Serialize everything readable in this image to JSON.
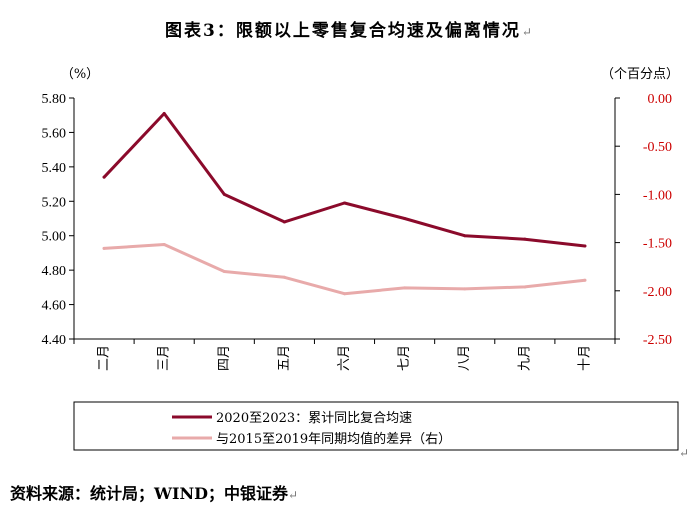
{
  "title": "图表3：限额以上零售复合均速及偏离情况",
  "source": "资料来源：统计局；WIND；中银证券",
  "paragraph_mark": "↵",
  "colors": {
    "series1": "#8b0a2b",
    "series2": "#e8aaaa",
    "right_axis": "#cc0000",
    "axis": "#000000"
  },
  "chart_data": {
    "type": "line",
    "title": "图表3：限额以上零售复合均速及偏离情况",
    "categories": [
      "二月",
      "三月",
      "四月",
      "五月",
      "六月",
      "七月",
      "八月",
      "九月",
      "十月"
    ],
    "left_axis": {
      "unit_label": "（%）",
      "ylim": [
        4.4,
        5.8
      ],
      "ticks": [
        "4.40",
        "4.60",
        "4.80",
        "5.00",
        "5.20",
        "5.40",
        "5.60",
        "5.80"
      ]
    },
    "right_axis": {
      "unit_label": "（个百分点）",
      "ylim": [
        -2.5,
        0.0
      ],
      "ticks": [
        "-2.50",
        "-2.00",
        "-1.50",
        "-1.00",
        "-0.50",
        "0.00"
      ]
    },
    "series": [
      {
        "name": "2020至2023：累计同比复合均速",
        "axis": "left",
        "values": [
          5.34,
          5.71,
          5.24,
          5.08,
          5.19,
          5.1,
          5.0,
          4.98,
          4.94
        ]
      },
      {
        "name": "与2015至2019年同期均值的差异（右）",
        "axis": "right",
        "values": [
          -1.56,
          -1.52,
          -1.8,
          -1.86,
          -2.03,
          -1.97,
          -1.98,
          -1.96,
          -1.89
        ]
      }
    ],
    "legend_position": "bottom",
    "grid": false
  }
}
